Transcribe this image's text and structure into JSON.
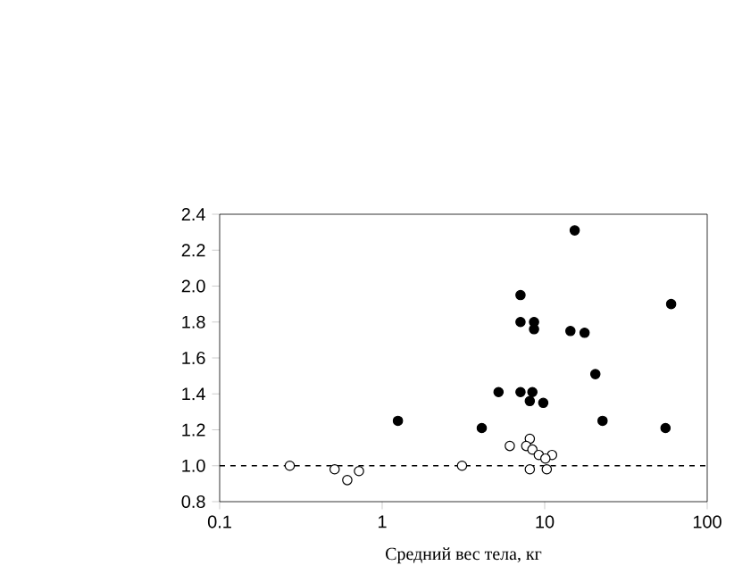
{
  "chart_data": {
    "type": "scatter",
    "xlabel": "Средний вес тела, кг",
    "log": "x",
    "marker": "circle",
    "grid": false,
    "xlim": [
      0.1,
      100
    ],
    "xticks": [
      0.1,
      1,
      10,
      100
    ],
    "ylim": [
      0.8,
      2.4
    ],
    "yticks": [
      {
        "value": 0.8,
        "label": "0.8"
      },
      {
        "value": 1.0,
        "label": "1.0"
      },
      {
        "value": 1.2,
        "label": "1.2"
      },
      {
        "value": 1.4,
        "label": "1.4"
      },
      {
        "value": 1.6,
        "label": "1.6"
      },
      {
        "value": 1.8,
        "label": "1.8"
      },
      {
        "value": 2.0,
        "label": "2.0"
      },
      {
        "value": 2.2,
        "label": "2.2"
      },
      {
        "value": 2.4,
        "label": "2.4"
      }
    ],
    "ref_lines": [
      {
        "axis": "y",
        "value": 1.0,
        "color": "#000000",
        "line_style": "dashed"
      }
    ],
    "series": [
      {
        "color": "#000000",
        "x": [
          1.25,
          15.3,
          7.1,
          60,
          7.1,
          8.6,
          8.6,
          14.4,
          17.6,
          20.5,
          5.2,
          7.1,
          8.4,
          8.1,
          9.8,
          4.1,
          22.7,
          55.4
        ],
        "values": [
          1.25,
          2.31,
          1.95,
          1.9,
          1.8,
          1.8,
          1.76,
          1.75,
          1.74,
          1.51,
          1.41,
          1.41,
          1.41,
          1.36,
          1.35,
          1.21,
          1.25,
          1.21
        ]
      },
      {
        "color": "#000000",
        "x": [
          0.27,
          0.51,
          0.61,
          0.72,
          3.1,
          6.1,
          8.1,
          7.7,
          8.4,
          9.2,
          11.1,
          10.1,
          8.1,
          10.3
        ],
        "values": [
          1.0,
          0.98,
          0.92,
          0.97,
          1.0,
          1.11,
          1.15,
          1.11,
          1.09,
          1.06,
          1.06,
          1.04,
          0.98,
          0.98
        ]
      }
    ]
  }
}
